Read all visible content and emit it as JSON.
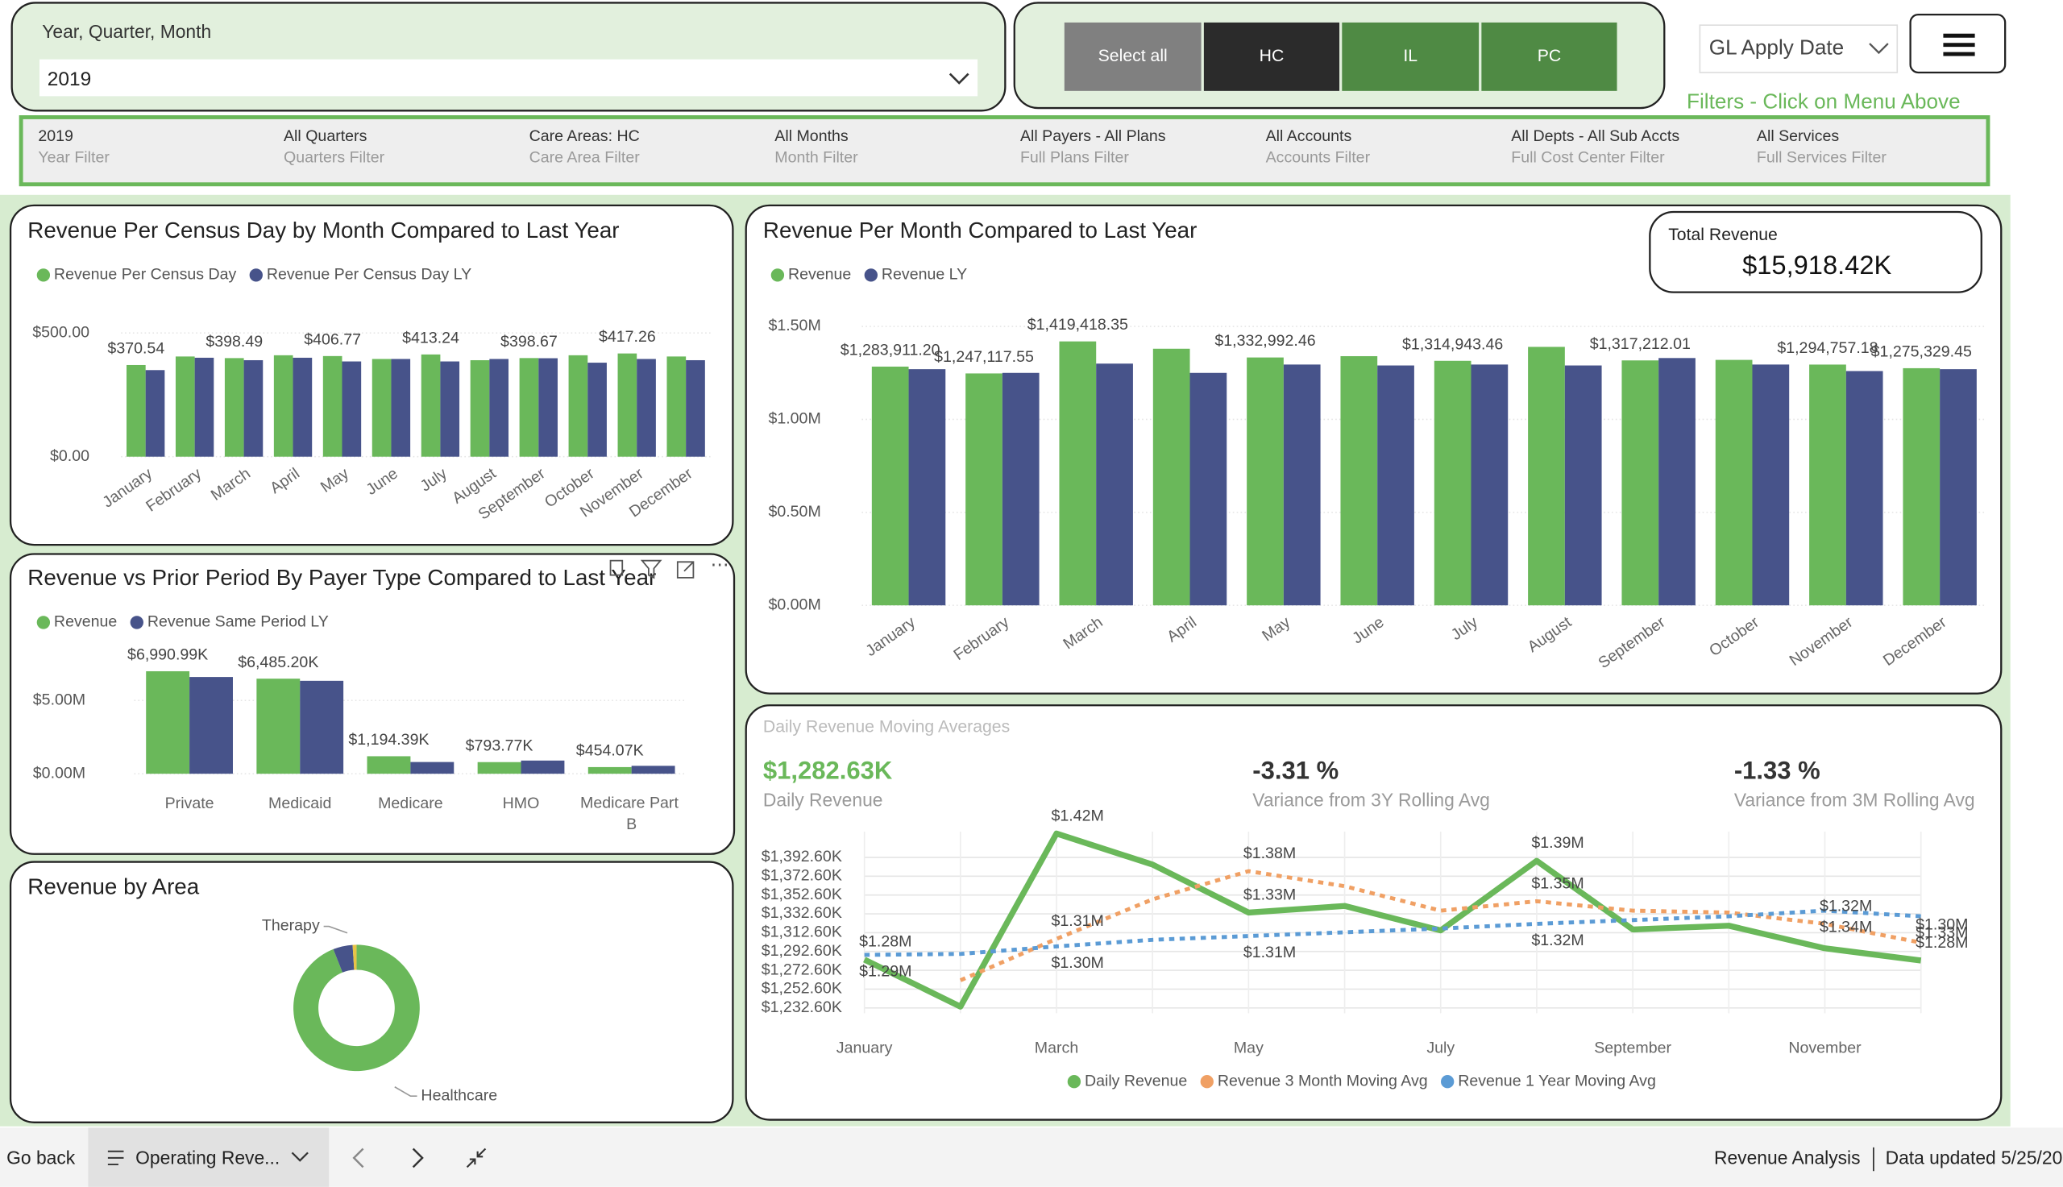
{
  "slicer": {
    "label": "Year, Quarter, Month",
    "value": "2019"
  },
  "buttons": [
    "Select all",
    "HC",
    "IL",
    "PC"
  ],
  "date_field": "GL Apply Date",
  "filters_hint": "Filters - Click on Menu Above",
  "filters": [
    {
      "value": "2019",
      "label": "Year Filter"
    },
    {
      "value": "All Quarters",
      "label": "Quarters Filter"
    },
    {
      "value": "Care Areas: HC",
      "label": "Care Area Filter"
    },
    {
      "value": "All Months",
      "label": "Month Filter"
    },
    {
      "value": "All Payers - All Plans",
      "label": "Full Plans Filter"
    },
    {
      "value": "All Accounts",
      "label": "Accounts Filter"
    },
    {
      "value": "All Depts - All Sub Accts",
      "label": "Full Cost Center Filter"
    },
    {
      "value": "All Services",
      "label": "Full Services Filter"
    }
  ],
  "kpi_card": {
    "title": "Total Revenue",
    "value": "$15,918.42K"
  },
  "moving_avg_kpis": [
    {
      "value": "$1,282.63K",
      "label": "Daily Revenue"
    },
    {
      "value": "-3.31 %",
      "label": "Variance from 3Y Rolling Avg"
    },
    {
      "value": "-1.33 %",
      "label": "Variance from 3M Rolling Avg"
    }
  ],
  "footer": {
    "back": "Go back",
    "tab": "Operating Reve...",
    "report": "Revenue Analysis",
    "updated": "Data updated 5/25/20"
  },
  "chart_data": [
    {
      "type": "bar",
      "title": "Revenue Per Census Day by Month Compared to Last Year",
      "categories": [
        "January",
        "February",
        "March",
        "April",
        "May",
        "June",
        "July",
        "August",
        "September",
        "October",
        "November",
        "December"
      ],
      "series": [
        {
          "name": "Revenue Per Census Day",
          "color": "#6ab85a",
          "values": [
            370.54,
            405,
            398.49,
            410,
            406.77,
            395,
            413.24,
            390,
            398.67,
            410,
            417.26,
            405
          ],
          "value_labels": [
            "$370.54",
            null,
            "$398.49",
            null,
            "$406.77",
            null,
            "$413.24",
            null,
            "$398.67",
            null,
            "$417.26",
            null
          ]
        },
        {
          "name": "Revenue Per Census Day LY",
          "color": "#47538a",
          "values": [
            350,
            400,
            390,
            400,
            385,
            395,
            385,
            395,
            398,
            380,
            395,
            390
          ]
        }
      ],
      "ylim": [
        0,
        500
      ],
      "yticks": [
        {
          "value": 0,
          "label": "$0.00"
        },
        {
          "value": 500,
          "label": "$500.00"
        }
      ],
      "grid": true
    },
    {
      "type": "bar",
      "title": "Revenue Per Month Compared to Last Year",
      "categories": [
        "January",
        "February",
        "March",
        "April",
        "May",
        "June",
        "July",
        "August",
        "September",
        "October",
        "November",
        "December"
      ],
      "series": [
        {
          "name": "Revenue",
          "color": "#6ab85a",
          "values": [
            1283911.2,
            1247117.55,
            1419418.35,
            1380000,
            1332992.46,
            1340000,
            1314943.46,
            1390000,
            1317212.01,
            1320000,
            1294757.18,
            1275329.45
          ],
          "value_labels": [
            "$1,283,911.20",
            "$1,247,117.55",
            "$1,419,418.35",
            null,
            "$1,332,992.46",
            null,
            "$1,314,943.46",
            null,
            "$1,317,212.01",
            null,
            "$1,294,757.18",
            "$1,275,329.45"
          ]
        },
        {
          "name": "Revenue LY",
          "color": "#47538a",
          "values": [
            1270000,
            1250000,
            1300000,
            1250000,
            1295000,
            1290000,
            1295000,
            1290000,
            1330000,
            1295000,
            1260000,
            1270000
          ]
        }
      ],
      "ylim": [
        0,
        1500000
      ],
      "yticks": [
        {
          "value": 0,
          "label": "$0.00M"
        },
        {
          "value": 500000,
          "label": "$0.50M"
        },
        {
          "value": 1000000,
          "label": "$1.00M"
        },
        {
          "value": 1500000,
          "label": "$1.50M"
        }
      ],
      "grid": true
    },
    {
      "type": "bar",
      "title": "Revenue vs Prior Period By Payer Type Compared to Last Year",
      "categories": [
        "Private",
        "Medicaid",
        "Medicare",
        "HMO",
        "Medicare Part B"
      ],
      "series": [
        {
          "name": "Revenue",
          "color": "#6ab85a",
          "values": [
            6990990,
            6485200,
            1194390,
            793770,
            454070
          ],
          "value_labels": [
            "$6,990.99K",
            "$6,485.20K",
            "$1,194.39K",
            "$793.77K",
            "$454.07K"
          ]
        },
        {
          "name": "Revenue Same Period LY",
          "color": "#47538a",
          "values": [
            6600000,
            6340000,
            800000,
            900000,
            540000
          ]
        }
      ],
      "ylim": [
        0,
        7000000
      ],
      "yticks": [
        {
          "value": 0,
          "label": "$0.00M"
        },
        {
          "value": 5000000,
          "label": "$5.00M"
        }
      ],
      "grid": true
    },
    {
      "type": "pie",
      "title": "Revenue by Area",
      "donut": true,
      "categories": [
        "Healthcare",
        "Therapy",
        null
      ],
      "values": [
        94,
        5,
        1
      ],
      "colors": [
        "#6ab85a",
        "#47538a",
        "#e8c346"
      ]
    },
    {
      "type": "line",
      "title": "Daily Revenue Moving Averages",
      "categories": [
        "January",
        null,
        "March",
        null,
        "May",
        null,
        "July",
        null,
        "September",
        null,
        "November",
        null
      ],
      "series": [
        {
          "name": "Daily Revenue",
          "color": "#6ab85a",
          "dashed": false,
          "values": [
            1284000,
            1234000,
            1418000,
            1385000,
            1334000,
            1341000,
            1315000,
            1389000,
            1316000,
            1320000,
            1296000,
            1283000
          ],
          "value_labels": [
            "$1.28M",
            null,
            "$1.42M",
            null,
            "$1.33M",
            null,
            null,
            "$1.39M",
            null,
            null,
            null,
            "$1.28M"
          ]
        },
        {
          "name": "Revenue 3 Month Moving Avg",
          "color": "#f0a064",
          "dashed": true,
          "values": [
            null,
            1262000,
            1306000,
            1348000,
            1378000,
            1362000,
            1336000,
            1346000,
            1336000,
            1334000,
            1322000,
            1302000
          ],
          "value_labels": [
            null,
            null,
            "$1.31M",
            null,
            "$1.38M",
            null,
            null,
            "$1.35M",
            null,
            null,
            "$1.32M",
            "$1.30M"
          ]
        },
        {
          "name": "Revenue 1 Year Moving Avg",
          "color": "#5b9bd5",
          "dashed": true,
          "values": [
            1289000,
            1290000,
            1298000,
            1305000,
            1309000,
            1313000,
            1317000,
            1322000,
            1326000,
            1330000,
            1336000,
            1330000
          ],
          "value_labels": [
            "$1.29M",
            null,
            "$1.30M",
            null,
            "$1.31M",
            null,
            null,
            "$1.32M",
            null,
            null,
            "$1.34M",
            "$1.33M"
          ]
        }
      ],
      "ylim": [
        1227000,
        1420000
      ],
      "yticks": [
        {
          "value": 1232600,
          "label": "$1,232.60K"
        },
        {
          "value": 1252600,
          "label": "$1,252.60K"
        },
        {
          "value": 1272600,
          "label": "$1,272.60K"
        },
        {
          "value": 1292600,
          "label": "$1,292.60K"
        },
        {
          "value": 1312600,
          "label": "$1,312.60K"
        },
        {
          "value": 1332600,
          "label": "$1,332.60K"
        },
        {
          "value": 1352600,
          "label": "$1,352.60K"
        },
        {
          "value": 1372600,
          "label": "$1,372.60K"
        },
        {
          "value": 1392600,
          "label": "$1,392.60K"
        }
      ],
      "grid": true,
      "xgrid": true
    }
  ]
}
